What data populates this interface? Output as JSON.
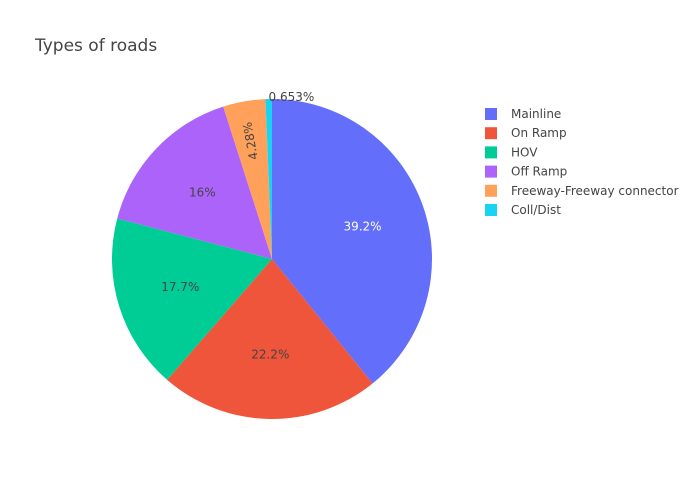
{
  "chart_data": {
    "type": "pie",
    "title": "Types of roads",
    "legend_position": "top-right",
    "direction": "clockwise",
    "start": "top",
    "slices": [
      {
        "label": "Mainline",
        "value": 39.2,
        "text": "39.2%",
        "color": "#636efa",
        "text_color": "#ffffff",
        "text_position": "inside"
      },
      {
        "label": "On Ramp",
        "value": 22.2,
        "text": "22.2%",
        "color": "#ef553b",
        "text_color": "#444444",
        "text_position": "inside"
      },
      {
        "label": "HOV",
        "value": 17.7,
        "text": "17.7%",
        "color": "#00cc96",
        "text_color": "#444444",
        "text_position": "inside"
      },
      {
        "label": "Off Ramp",
        "value": 16.0,
        "text": "16%",
        "color": "#ab63fa",
        "text_color": "#444444",
        "text_position": "inside"
      },
      {
        "label": "Freeway-Freeway connector",
        "value": 4.28,
        "text": "4.28%",
        "color": "#ffa15a",
        "text_color": "#444444",
        "text_position": "inside-rotated"
      },
      {
        "label": "Coll/Dist",
        "value": 0.653,
        "text": "0.653%",
        "color": "#19d3f3",
        "text_color": "#444444",
        "text_position": "outside"
      }
    ]
  }
}
